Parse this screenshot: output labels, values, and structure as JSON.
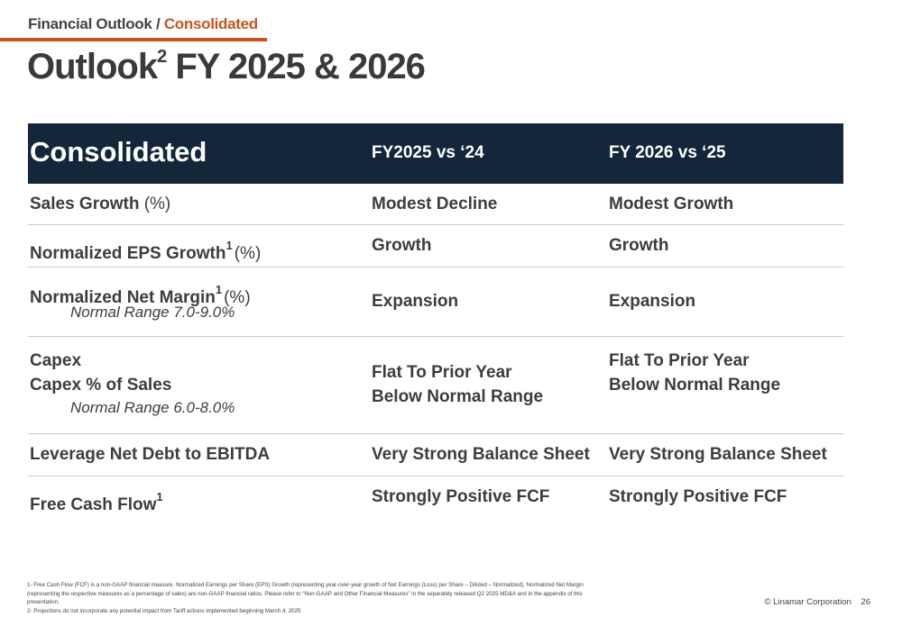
{
  "header": {
    "breadcrumb_main": "Financial Outlook /",
    "breadcrumb_accent": "Consolidated",
    "title": "Outlook",
    "title_sup": "2",
    "title_rest": "FY 2025 & 2026"
  },
  "table": {
    "columns": [
      "Consolidated",
      "FY2025 vs ‘24",
      "FY 2026 vs ‘25"
    ],
    "rows": [
      {
        "label": "Sales Growth",
        "unit": "(%)",
        "fy2025": "Modest Decline",
        "fy2026": "Modest Growth"
      },
      {
        "label": "Normalized EPS Growth",
        "sup": "1",
        "unit": "(%)",
        "fy2025": "Growth",
        "fy2026": "Growth"
      },
      {
        "label": "Normalized Net Margin",
        "sup": "1",
        "unit": "(%)",
        "note": "Normal Range 7.0-9.0%",
        "fy2025": "Expansion",
        "fy2026": "Expansion"
      },
      {
        "label": "Capex",
        "label2": "Capex % of Sales",
        "note": "Normal Range 6.0-8.0%",
        "fy2025": "Flat To Prior Year",
        "fy2025_2": "Below Normal Range",
        "fy2026": "Flat To Prior Year",
        "fy2026_2": "Below Normal Range"
      },
      {
        "label": "Leverage Net Debt to EBITDA",
        "fy2025": "Very Strong Balance Sheet",
        "fy2026": "Very Strong Balance Sheet"
      },
      {
        "label": "Free Cash Flow",
        "sup": "1",
        "fy2025": "Strongly Positive FCF",
        "fy2026": "Strongly Positive FCF"
      }
    ]
  },
  "footnotes": [
    "1- Free Cash Flow (FCF) is a non-GAAP financial measure. Normalized Earnings per Share (EPS) Growth (representing year-over-year growth of Net Earnings (Loss) per Share – Diluted – Normalized), Normalized Net Margin (representing the respective measures as a percentage of sales) are non-GAAP financial ratios. Please refer to “Non-GAAP and Other Financial Measures” in the separately released Q2 2025 MD&A and in the appendix of this presentation.",
    "2- Projections do not incorporate any potential impact from Tariff actions implemented beginning March 4, 2025"
  ],
  "footer": {
    "copyright": "© Linamar Corporation",
    "page_number": "26"
  },
  "colors": {
    "accent": "#c8531f",
    "header_bg": "#13263a"
  }
}
